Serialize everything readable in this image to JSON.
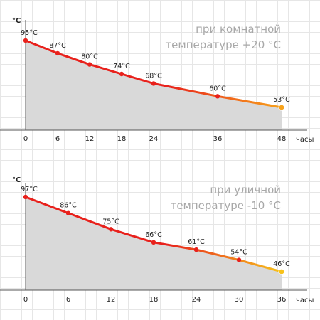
{
  "chart_data": [
    {
      "type": "area",
      "title": "при комнатной температуре +20 °C",
      "title_lines": [
        "при комнатной",
        "температуре +20 °C"
      ],
      "ylabel": "°C",
      "xlabel": "часы",
      "x": [
        0,
        6,
        12,
        18,
        24,
        36,
        48
      ],
      "values": [
        95,
        87,
        80,
        74,
        68,
        60,
        53
      ],
      "data_labels": [
        "95°C",
        "87°C",
        "80°C",
        "74°C",
        "68°C",
        "60°C",
        "53°C"
      ],
      "xticks": [
        "0",
        "6",
        "12",
        "18",
        "24",
        "36",
        "48"
      ],
      "colors": {
        "start": "#e8211c",
        "end": "#f7a21b",
        "fill": "#d9d9d9"
      }
    },
    {
      "type": "area",
      "title": "при уличной температуре -10 °C",
      "title_lines": [
        "при уличной",
        "температуре -10 °C"
      ],
      "ylabel": "°C",
      "xlabel": "часы",
      "x": [
        0,
        6,
        12,
        18,
        24,
        30,
        36
      ],
      "values": [
        97,
        86,
        75,
        66,
        61,
        54,
        46
      ],
      "data_labels": [
        "97°C",
        "86°C",
        "75°C",
        "66°C",
        "61°C",
        "54°C",
        "46°C"
      ],
      "xticks": [
        "0",
        "6",
        "12",
        "18",
        "24",
        "30",
        "36"
      ],
      "colors": {
        "start": "#e8211c",
        "end": "#f7c21b",
        "fill": "#d9d9d9"
      }
    }
  ]
}
